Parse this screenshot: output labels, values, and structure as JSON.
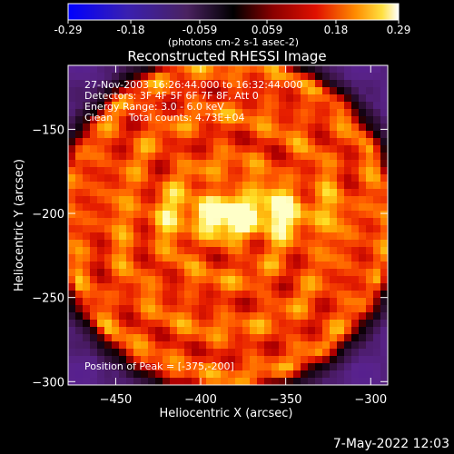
{
  "chart_data": {
    "type": "heatmap",
    "title": "Reconstructed RHESSI Image",
    "xlabel": "Heliocentric X (arcsec)",
    "ylabel": "Heliocentric Y (arcsec)",
    "xlim": [
      -478,
      -290
    ],
    "ylim": [
      -302,
      -112
    ],
    "x_ticks": [
      -450,
      -400,
      -350,
      -300
    ],
    "y_ticks": [
      -300,
      -250,
      -200,
      -150
    ],
    "colorbar": {
      "min": -0.29,
      "max": 0.29,
      "ticks": [
        "-0.29",
        "-0.18",
        "-0.059",
        "0.059",
        "0.18",
        "0.29"
      ],
      "unit_label": "(photons cm-2 s-1 asec-2)"
    },
    "annotations": [
      "27-Nov-2003 16:26:44.000 to 16:32:44.000",
      "Detectors: 3F 4F 5F 6F 7F 8F, Att 0",
      "Energy Range: 3.0 - 6.0 keV",
      "Clean     Total counts: 4.73E+04"
    ],
    "peak_label": "Position of Peak = [-375,-200]",
    "peak": [
      -375,
      -200
    ],
    "grid": false
  },
  "timestamp": "7-May-2022 12:03",
  "colors": {
    "background": "#000000",
    "text": "#ffffff",
    "colormap": [
      "#0000ff",
      "#4a1a8c",
      "#3a0e2a",
      "#000000",
      "#6a0000",
      "#d00000",
      "#ff5000",
      "#ffb000",
      "#ffff40",
      "#ffffff"
    ]
  }
}
